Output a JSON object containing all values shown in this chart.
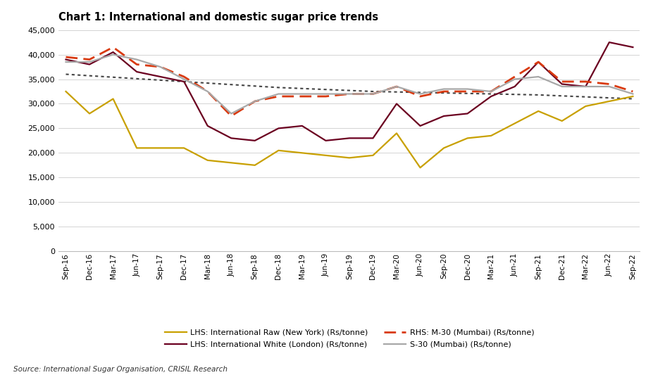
{
  "title": "Chart 1: International and domestic sugar price trends",
  "source": "Source: International Sugar Organisation, CRISIL Research",
  "ylim": [
    0,
    45000
  ],
  "yticks": [
    0,
    5000,
    10000,
    15000,
    20000,
    25000,
    30000,
    35000,
    40000,
    45000
  ],
  "x_labels": [
    "Sep-16",
    "Dec-16",
    "Mar-17",
    "Jun-17",
    "Sep-17",
    "Dec-17",
    "Mar-18",
    "Jun-18",
    "Sep-18",
    "Dec-18",
    "Mar-19",
    "Jun-19",
    "Sep-19",
    "Dec-19",
    "Mar-20",
    "Jun-20",
    "Sep-20",
    "Dec-20",
    "Mar-21",
    "Jun-21",
    "Sep-21",
    "Dec-21",
    "Mar-22",
    "Jun-22",
    "Sep-22"
  ],
  "dotted_line": [
    36000,
    35700,
    35400,
    35100,
    34800,
    34500,
    34200,
    33900,
    33600,
    33300,
    33100,
    32900,
    32700,
    32500,
    32400,
    32300,
    32200,
    32100,
    32000,
    31900,
    31800,
    31600,
    31400,
    31200,
    31000
  ],
  "int_raw": [
    32500,
    28000,
    31000,
    21000,
    21000,
    21000,
    18500,
    18000,
    17500,
    20500,
    20000,
    19500,
    19000,
    19500,
    24000,
    17000,
    21000,
    23000,
    23500,
    26000,
    28500,
    26500,
    29500,
    30500,
    31500
  ],
  "int_white": [
    39000,
    38000,
    40500,
    36500,
    35500,
    34500,
    25500,
    23000,
    22500,
    25000,
    25500,
    22500,
    23000,
    23000,
    30000,
    25500,
    27500,
    28000,
    31500,
    33500,
    38500,
    34000,
    33500,
    42500,
    41500
  ],
  "m30": [
    39500,
    39000,
    41500,
    38000,
    37500,
    35500,
    32500,
    27500,
    30500,
    31500,
    31500,
    31500,
    32000,
    32000,
    33500,
    31500,
    32500,
    32500,
    32500,
    35500,
    38500,
    34500,
    34500,
    34000,
    32500
  ],
  "s30": [
    38500,
    38500,
    40000,
    39000,
    37500,
    35000,
    32500,
    28000,
    30500,
    32000,
    32000,
    32000,
    32000,
    32000,
    33500,
    32000,
    33000,
    33000,
    32500,
    35000,
    35500,
    33500,
    33500,
    33500,
    32000
  ],
  "color_raw": "#C8A000",
  "color_white": "#6B0020",
  "color_m30": "#D93A10",
  "color_s30": "#A8A8A8",
  "color_dotted": "#444444",
  "bg_color": "#F5F5F5",
  "legend_labels_col1": [
    {
      "label": "LHS: International Raw (New York) (Rs/tonne)",
      "color": "#C8A000",
      "linestyle": "solid"
    },
    {
      "label": "RHS: M-30 (Mumbai) (Rs/tonne)",
      "color": "#D93A10",
      "linestyle": "dashed"
    }
  ],
  "legend_labels_col2": [
    {
      "label": "LHS: International White (London) (Rs/tonne)",
      "color": "#6B0020",
      "linestyle": "solid"
    },
    {
      "label": "S-30 (Mumbai) (Rs/tonne)",
      "color": "#A8A8A8",
      "linestyle": "solid"
    }
  ]
}
